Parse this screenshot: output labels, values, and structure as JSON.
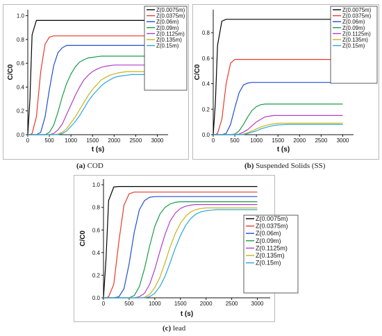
{
  "captions": [
    {
      "letter": "(a)",
      "text": " COD"
    },
    {
      "letter": "(b)",
      "text": " Suspended Solids (SS)"
    },
    {
      "letter": "(c)",
      "text": " lead"
    }
  ],
  "colors": {
    "Z(0.0075m)": "#000000",
    "Z(0.0375m)": "#e8392c",
    "Z(0.06m)": "#1f4fd1",
    "Z(0.09m)": "#1a9a4a",
    "Z(0.1125m)": "#b23cc9",
    "Z(0.135m)": "#c7b21a",
    "Z(0.15m)": "#2aa7d8"
  },
  "chart_data": [
    {
      "type": "line",
      "caption": "(a) COD",
      "xlabel": "t (s)",
      "ylabel": "C/C0",
      "xlim": [
        0,
        3250
      ],
      "ylim": [
        0,
        1.05
      ],
      "xticks": [
        0,
        500,
        1000,
        1500,
        2000,
        2500,
        3000
      ],
      "yticks": [
        0.0,
        0.2,
        0.4,
        0.6,
        0.8,
        1.0
      ],
      "grid": false,
      "legend_position": "top-right",
      "x": [
        0,
        50,
        100,
        200,
        300,
        400,
        500,
        600,
        700,
        800,
        900,
        1000,
        1100,
        1200,
        1300,
        1400,
        1500,
        1600,
        1700,
        1800,
        1900,
        2000,
        2100,
        2200,
        2300,
        2400,
        2500,
        2600,
        2800,
        3000
      ],
      "series": [
        {
          "name": "Z(0.0075m)",
          "values": [
            0,
            0.3,
            0.84,
            0.96,
            0.96,
            0.96,
            0.96,
            0.96,
            0.96,
            0.96,
            0.96,
            0.96,
            0.96,
            0.96,
            0.96,
            0.96,
            0.96,
            0.96,
            0.96,
            0.96,
            0.96,
            0.96,
            0.96,
            0.96,
            0.96,
            0.96,
            0.96,
            0.96,
            0.96,
            0.96
          ]
        },
        {
          "name": "Z(0.0375m)",
          "values": [
            0,
            0,
            0.01,
            0.15,
            0.53,
            0.76,
            0.82,
            0.83,
            0.83,
            0.83,
            0.83,
            0.83,
            0.83,
            0.83,
            0.83,
            0.83,
            0.83,
            0.83,
            0.83,
            0.83,
            0.83,
            0.83,
            0.83,
            0.83,
            0.83,
            0.83,
            0.83,
            0.83,
            0.83,
            0.83
          ]
        },
        {
          "name": "Z(0.06m)",
          "values": [
            0,
            0,
            0,
            0,
            0.02,
            0.15,
            0.38,
            0.58,
            0.69,
            0.73,
            0.75,
            0.75,
            0.75,
            0.75,
            0.75,
            0.75,
            0.75,
            0.75,
            0.75,
            0.75,
            0.75,
            0.75,
            0.75,
            0.75,
            0.75,
            0.75,
            0.75,
            0.75,
            0.75,
            0.75
          ]
        },
        {
          "name": "Z(0.09m)",
          "values": [
            0,
            0,
            0,
            0,
            0,
            0,
            0.02,
            0.08,
            0.19,
            0.32,
            0.43,
            0.51,
            0.57,
            0.61,
            0.63,
            0.645,
            0.65,
            0.655,
            0.66,
            0.66,
            0.66,
            0.66,
            0.66,
            0.66,
            0.66,
            0.66,
            0.66,
            0.66,
            0.66,
            0.66
          ]
        },
        {
          "name": "Z(0.1125m)",
          "values": [
            0,
            0,
            0,
            0,
            0,
            0,
            0,
            0.01,
            0.04,
            0.09,
            0.17,
            0.25,
            0.33,
            0.4,
            0.46,
            0.5,
            0.53,
            0.55,
            0.565,
            0.575,
            0.58,
            0.585,
            0.585,
            0.585,
            0.585,
            0.585,
            0.585,
            0.585,
            0.585,
            0.585
          ]
        },
        {
          "name": "Z(0.135m)",
          "values": [
            0,
            0,
            0,
            0,
            0,
            0,
            0,
            0,
            0.005,
            0.02,
            0.05,
            0.1,
            0.15,
            0.21,
            0.27,
            0.33,
            0.38,
            0.42,
            0.46,
            0.48,
            0.5,
            0.51,
            0.52,
            0.525,
            0.53,
            0.53,
            0.53,
            0.53,
            0.53,
            0.53
          ]
        },
        {
          "name": "Z(0.15m)",
          "values": [
            0,
            0,
            0,
            0,
            0,
            0,
            0,
            0,
            0,
            0.01,
            0.03,
            0.07,
            0.11,
            0.16,
            0.22,
            0.28,
            0.33,
            0.37,
            0.41,
            0.44,
            0.46,
            0.48,
            0.49,
            0.495,
            0.5,
            0.505,
            0.505,
            0.505,
            0.505,
            0.505
          ]
        }
      ]
    },
    {
      "type": "line",
      "caption": "(b) Suspended Solids (SS)",
      "xlabel": "t (s)",
      "ylabel": "C/C0",
      "xlim": [
        0,
        3250
      ],
      "ylim": [
        0,
        0.98
      ],
      "xticks": [
        0,
        500,
        1000,
        1500,
        2000,
        2500,
        3000
      ],
      "yticks": [
        0.0,
        0.2,
        0.4,
        0.6,
        0.8
      ],
      "grid": false,
      "legend_position": "top-right",
      "x": [
        0,
        50,
        100,
        200,
        300,
        400,
        500,
        600,
        700,
        800,
        900,
        1000,
        1100,
        1200,
        1300,
        1400,
        1500,
        1600,
        1700,
        1800,
        1900,
        2000,
        2100,
        2200,
        2300,
        2400,
        2500,
        2600,
        2800,
        3000
      ],
      "series": [
        {
          "name": "Z(0.0075m)",
          "values": [
            0,
            0.25,
            0.7,
            0.89,
            0.905,
            0.905,
            0.905,
            0.905,
            0.905,
            0.905,
            0.905,
            0.905,
            0.905,
            0.905,
            0.905,
            0.905,
            0.905,
            0.905,
            0.905,
            0.905,
            0.905,
            0.905,
            0.905,
            0.905,
            0.905,
            0.905,
            0.905,
            0.905,
            0.905,
            0.905
          ]
        },
        {
          "name": "Z(0.0375m)",
          "values": [
            0,
            0,
            0.01,
            0.12,
            0.4,
            0.56,
            0.59,
            0.59,
            0.59,
            0.59,
            0.59,
            0.59,
            0.59,
            0.59,
            0.59,
            0.59,
            0.59,
            0.59,
            0.59,
            0.59,
            0.59,
            0.59,
            0.59,
            0.59,
            0.59,
            0.59,
            0.59,
            0.59,
            0.59,
            0.59
          ]
        },
        {
          "name": "Z(0.06m)",
          "values": [
            0,
            0,
            0,
            0,
            0.01,
            0.08,
            0.21,
            0.33,
            0.39,
            0.405,
            0.41,
            0.41,
            0.41,
            0.41,
            0.41,
            0.41,
            0.41,
            0.41,
            0.41,
            0.41,
            0.41,
            0.41,
            0.41,
            0.41,
            0.41,
            0.41,
            0.41,
            0.41,
            0.41,
            0.41
          ]
        },
        {
          "name": "Z(0.09m)",
          "values": [
            0,
            0,
            0,
            0,
            0,
            0,
            0.005,
            0.03,
            0.08,
            0.14,
            0.19,
            0.22,
            0.235,
            0.24,
            0.24,
            0.24,
            0.24,
            0.24,
            0.24,
            0.24,
            0.24,
            0.24,
            0.24,
            0.24,
            0.24,
            0.24,
            0.24,
            0.24,
            0.24,
            0.24
          ]
        },
        {
          "name": "Z(0.1125m)",
          "values": [
            0,
            0,
            0,
            0,
            0,
            0,
            0,
            0.005,
            0.02,
            0.04,
            0.07,
            0.1,
            0.12,
            0.14,
            0.145,
            0.15,
            0.15,
            0.15,
            0.15,
            0.15,
            0.15,
            0.15,
            0.15,
            0.15,
            0.15,
            0.15,
            0.15,
            0.15,
            0.15,
            0.15
          ]
        },
        {
          "name": "Z(0.135m)",
          "values": [
            0,
            0,
            0,
            0,
            0,
            0,
            0,
            0,
            0.005,
            0.015,
            0.03,
            0.045,
            0.06,
            0.07,
            0.08,
            0.085,
            0.09,
            0.09,
            0.09,
            0.09,
            0.09,
            0.09,
            0.09,
            0.09,
            0.09,
            0.09,
            0.09,
            0.09,
            0.09,
            0.09
          ]
        },
        {
          "name": "Z(0.15m)",
          "values": [
            0,
            0,
            0,
            0,
            0,
            0,
            0,
            0,
            0,
            0.01,
            0.02,
            0.03,
            0.045,
            0.055,
            0.065,
            0.072,
            0.076,
            0.078,
            0.08,
            0.08,
            0.08,
            0.08,
            0.08,
            0.08,
            0.08,
            0.08,
            0.08,
            0.08,
            0.08,
            0.08
          ]
        }
      ]
    },
    {
      "type": "line",
      "caption": "(c) lead",
      "xlabel": "t (s)",
      "ylabel": "C/C0",
      "xlim": [
        0,
        3250
      ],
      "ylim": [
        0,
        1.05
      ],
      "xticks": [
        0,
        500,
        1000,
        1500,
        2000,
        2500,
        3000
      ],
      "yticks": [
        0.0,
        0.2,
        0.4,
        0.6,
        0.8,
        1.0
      ],
      "grid": false,
      "legend_position": "right",
      "x": [
        0,
        50,
        100,
        200,
        300,
        400,
        500,
        600,
        700,
        800,
        900,
        1000,
        1100,
        1200,
        1300,
        1400,
        1500,
        1600,
        1700,
        1800,
        1900,
        2000,
        2100,
        2200,
        2300,
        2400,
        2500,
        2600,
        2800,
        3000
      ],
      "series": [
        {
          "name": "Z(0.0075m)",
          "values": [
            0,
            0.35,
            0.86,
            0.98,
            0.985,
            0.985,
            0.985,
            0.985,
            0.985,
            0.985,
            0.985,
            0.985,
            0.985,
            0.985,
            0.985,
            0.985,
            0.985,
            0.985,
            0.985,
            0.985,
            0.985,
            0.985,
            0.985,
            0.985,
            0.985,
            0.985,
            0.985,
            0.985,
            0.985,
            0.985
          ]
        },
        {
          "name": "Z(0.0375m)",
          "values": [
            0,
            0,
            0.01,
            0.12,
            0.5,
            0.82,
            0.92,
            0.935,
            0.935,
            0.935,
            0.935,
            0.935,
            0.935,
            0.935,
            0.935,
            0.935,
            0.935,
            0.935,
            0.935,
            0.935,
            0.935,
            0.935,
            0.935,
            0.935,
            0.935,
            0.935,
            0.935,
            0.935,
            0.935,
            0.935
          ]
        },
        {
          "name": "Z(0.06m)",
          "values": [
            0,
            0,
            0,
            0,
            0.01,
            0.08,
            0.3,
            0.58,
            0.78,
            0.86,
            0.89,
            0.895,
            0.895,
            0.895,
            0.895,
            0.895,
            0.895,
            0.895,
            0.895,
            0.895,
            0.895,
            0.895,
            0.895,
            0.895,
            0.895,
            0.895,
            0.895,
            0.895,
            0.895,
            0.895
          ]
        },
        {
          "name": "Z(0.09m)",
          "values": [
            0,
            0,
            0,
            0,
            0,
            0,
            0,
            0.02,
            0.1,
            0.26,
            0.46,
            0.63,
            0.74,
            0.8,
            0.83,
            0.845,
            0.85,
            0.85,
            0.85,
            0.85,
            0.85,
            0.85,
            0.85,
            0.85,
            0.85,
            0.85,
            0.85,
            0.85,
            0.85,
            0.85
          ]
        },
        {
          "name": "Z(0.1125m)",
          "values": [
            0,
            0,
            0,
            0,
            0,
            0,
            0,
            0,
            0.01,
            0.04,
            0.12,
            0.25,
            0.41,
            0.56,
            0.68,
            0.75,
            0.79,
            0.81,
            0.82,
            0.825,
            0.825,
            0.825,
            0.825,
            0.825,
            0.825,
            0.825,
            0.825,
            0.825,
            0.825,
            0.825
          ]
        },
        {
          "name": "Z(0.135m)",
          "values": [
            0,
            0,
            0,
            0,
            0,
            0,
            0,
            0,
            0,
            0.005,
            0.03,
            0.09,
            0.18,
            0.31,
            0.45,
            0.57,
            0.66,
            0.72,
            0.76,
            0.78,
            0.79,
            0.795,
            0.795,
            0.795,
            0.795,
            0.795,
            0.795,
            0.795,
            0.795,
            0.795
          ]
        },
        {
          "name": "Z(0.15m)",
          "values": [
            0,
            0,
            0,
            0,
            0,
            0,
            0,
            0,
            0,
            0,
            0.01,
            0.04,
            0.1,
            0.19,
            0.31,
            0.44,
            0.55,
            0.64,
            0.7,
            0.74,
            0.76,
            0.77,
            0.775,
            0.78,
            0.78,
            0.78,
            0.78,
            0.78,
            0.78,
            0.78
          ]
        }
      ]
    }
  ]
}
